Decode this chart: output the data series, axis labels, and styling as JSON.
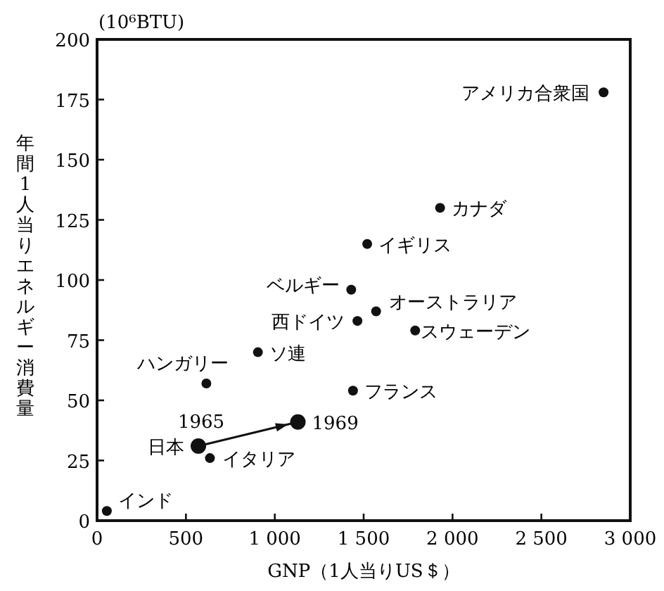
{
  "chart_data": {
    "type": "scatter",
    "xlabel": "GNP（1人当りUS＄）",
    "ylabel": "年間1人当りエネルギー消費量",
    "annotations": [
      "(10⁶BTU)",
      {
        "text": "アメリカ合衆国",
        "x": 2850,
        "y": 178
      },
      {
        "text": "カナダ",
        "x": 1930,
        "y": 130
      },
      {
        "text": "イギリス",
        "x": 1520,
        "y": 115
      },
      {
        "text": "ベルギー",
        "x": 1430,
        "y": 96
      },
      {
        "text": "オーストラリア",
        "x": 1570,
        "y": 87
      },
      {
        "text": "西ドイツ",
        "x": 1465,
        "y": 83
      },
      {
        "text": "スウェーデン",
        "x": 1790,
        "y": 79
      },
      {
        "text": "ソ連",
        "x": 905,
        "y": 70
      },
      {
        "text": "ハンガリー",
        "x": 615,
        "y": 57
      },
      {
        "text": "フランス",
        "x": 1440,
        "y": 54
      },
      {
        "text": "日本",
        "x": 570,
        "y": 31
      },
      {
        "text": "1965",
        "x": 570,
        "y": 31
      },
      {
        "text": "1969",
        "x": 1130,
        "y": 41
      },
      {
        "text": "イタリア",
        "x": 635,
        "y": 26
      },
      {
        "text": "インド",
        "x": 55,
        "y": 4
      }
    ],
    "series": [
      {
        "type": "scatter",
        "color": "#111111",
        "marker": "circle",
        "x": [
          2850,
          1930,
          1520,
          1430,
          1570,
          1465,
          1790,
          905,
          615,
          1440,
          635,
          55
        ],
        "values": [
          178,
          130,
          115,
          96,
          87,
          83,
          79,
          70,
          57,
          54,
          26,
          4
        ]
      },
      {
        "type": "line",
        "color": "#111111",
        "marker": "circle",
        "x": [
          570,
          1130
        ],
        "values": [
          31,
          41
        ]
      }
    ],
    "xlim": [
      0,
      3000
    ],
    "ylim": [
      0,
      200
    ],
    "xticks": [
      0,
      500,
      {
        "value": 1000,
        "label": "1 000"
      },
      {
        "value": 1500,
        "label": "1 500"
      },
      {
        "value": 2000,
        "label": "2 000"
      },
      {
        "value": 2500,
        "label": "2 500"
      },
      {
        "value": 3000,
        "label": "3 000"
      }
    ],
    "yticks": [
      0,
      25,
      50,
      75,
      100,
      125,
      150,
      175,
      200
    ],
    "grid": false
  }
}
